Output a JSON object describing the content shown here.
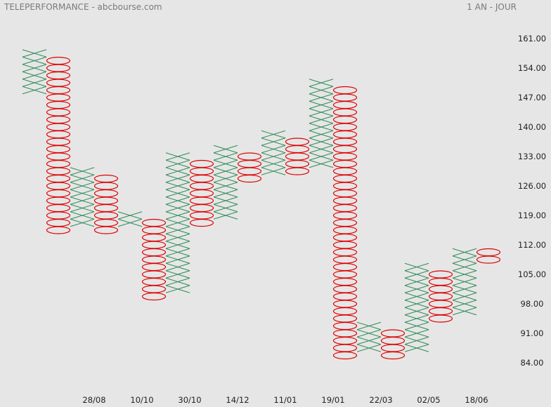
{
  "header": {
    "title": "TELEPERFORMANCE - abcbourse.com",
    "period": "1 AN - JOUR"
  },
  "chart_data": {
    "type": "point-and-figure",
    "box_size": 1.75,
    "ylim": [
      82.5,
      163
    ],
    "y_ticks": [
      84.0,
      91.0,
      98.0,
      105.0,
      112.0,
      119.0,
      126.0,
      133.0,
      140.0,
      147.0,
      154.0,
      161.0
    ],
    "x_ticks": [
      {
        "col": 2.5,
        "label": "28/08"
      },
      {
        "col": 4.5,
        "label": "10/10"
      },
      {
        "col": 6.5,
        "label": "30/10"
      },
      {
        "col": 8.5,
        "label": "14/12"
      },
      {
        "col": 10.5,
        "label": "11/01"
      },
      {
        "col": 12.5,
        "label": "19/01"
      },
      {
        "col": 14.5,
        "label": "22/03"
      },
      {
        "col": 16.5,
        "label": "02/05"
      },
      {
        "col": 18.5,
        "label": "18/06"
      }
    ],
    "colors": {
      "x": "#2e8b57",
      "o": "#e00000"
    },
    "columns": [
      {
        "type": "X",
        "low": 148.75,
        "high": 157.5
      },
      {
        "type": "O",
        "low": 115.5,
        "high": 155.75
      },
      {
        "type": "X",
        "low": 117.25,
        "high": 129.5
      },
      {
        "type": "O",
        "low": 115.5,
        "high": 127.75
      },
      {
        "type": "X",
        "low": 117.25,
        "high": 119
      },
      {
        "type": "O",
        "low": 99.75,
        "high": 117.25
      },
      {
        "type": "X",
        "low": 101.5,
        "high": 133
      },
      {
        "type": "O",
        "low": 117.25,
        "high": 131.25
      },
      {
        "type": "X",
        "low": 119,
        "high": 134.75
      },
      {
        "type": "O",
        "low": 127.75,
        "high": 133
      },
      {
        "type": "X",
        "low": 129.5,
        "high": 138.25
      },
      {
        "type": "O",
        "low": 129.5,
        "high": 136.5
      },
      {
        "type": "X",
        "low": 131.25,
        "high": 150.5
      },
      {
        "type": "O",
        "low": 85.75,
        "high": 148.75
      },
      {
        "type": "X",
        "low": 87.5,
        "high": 92.75
      },
      {
        "type": "O",
        "low": 85.75,
        "high": 91
      },
      {
        "type": "X",
        "low": 87.5,
        "high": 106.75
      },
      {
        "type": "O",
        "low": 94.5,
        "high": 105
      },
      {
        "type": "X",
        "low": 96.25,
        "high": 110.25
      },
      {
        "type": "O",
        "low": 108.5,
        "high": 110.25
      }
    ]
  }
}
